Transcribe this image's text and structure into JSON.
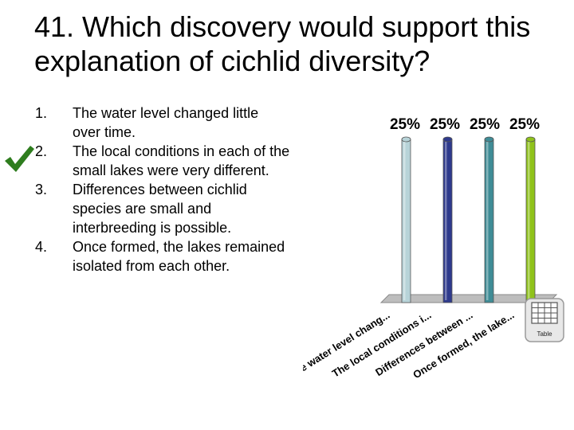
{
  "slide": {
    "title": "41. Which discovery would support this explanation of cichlid diversity?"
  },
  "options": [
    {
      "num": "1.",
      "text": "The water level changed little over time."
    },
    {
      "num": "2.",
      "text": "The local conditions in each of the small lakes were very different."
    },
    {
      "num": "3.",
      "text": "Differences between cichlid species are small and interbreeding is possible."
    },
    {
      "num": "4.",
      "text": "Once formed, the lakes remained isolated from each other."
    }
  ],
  "correct_marker": {
    "icon": "checkmark-icon",
    "color": "#2e7d1e",
    "option_index": 1
  },
  "table_button": {
    "label": "Table",
    "icon": "table-grid-icon"
  },
  "chart_data": {
    "type": "bar",
    "categories": [
      "The water level chang...",
      "The local conditions i...",
      "Differences between ...",
      "Once formed, the lake..."
    ],
    "values": [
      25,
      25,
      25,
      25
    ],
    "value_labels": [
      "25%",
      "25%",
      "25%",
      "25%"
    ],
    "colors": [
      "#b7d3d8",
      "#2e3a8c",
      "#3f8c96",
      "#8fc21a"
    ],
    "ylim": [
      0,
      25
    ],
    "grid": false,
    "title": "",
    "xlabel": "",
    "ylabel": ""
  }
}
